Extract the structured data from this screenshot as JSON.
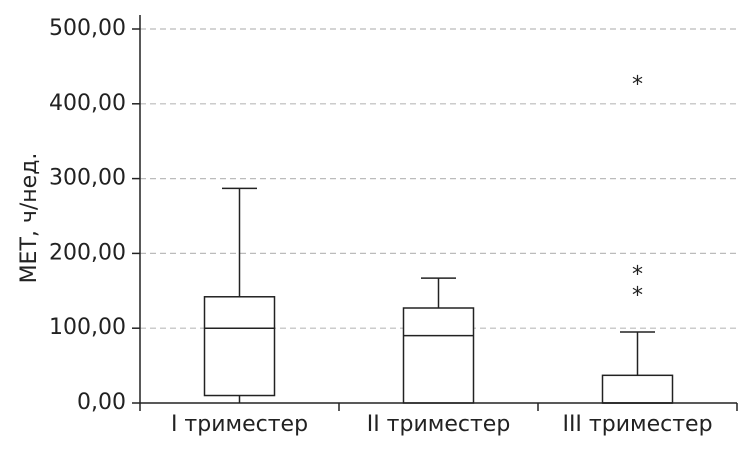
{
  "chart_data": {
    "type": "boxplot",
    "title": "",
    "xlabel": "",
    "ylabel": "МЕТ, ч/нед.",
    "ylim": [
      0,
      500
    ],
    "y_ticks": [
      0,
      100,
      200,
      300,
      400,
      500
    ],
    "y_tick_labels": [
      "0,00",
      "100,00",
      "200,00",
      "300,00",
      "400,00",
      "500,00"
    ],
    "grid": "horizontal dashed",
    "categories": [
      "I триместер",
      "II триместер",
      "III триместер"
    ],
    "boxes": [
      {
        "category": "I триместер",
        "min": 0,
        "q1": 10,
        "median": 100,
        "q3": 142,
        "max": 287,
        "outliers": []
      },
      {
        "category": "II триместер",
        "min": 0,
        "q1": 0,
        "median": 90,
        "q3": 127,
        "max": 167,
        "outliers": []
      },
      {
        "category": "III триместер",
        "min": 0,
        "q1": 0,
        "median": 0,
        "q3": 37,
        "max": 95,
        "outliers": [
          145,
          173,
          427
        ]
      }
    ],
    "outlier_marker": "*"
  },
  "colors": {
    "axis": "#222222",
    "box_stroke": "#222222",
    "grid": "#bbbbbb"
  }
}
